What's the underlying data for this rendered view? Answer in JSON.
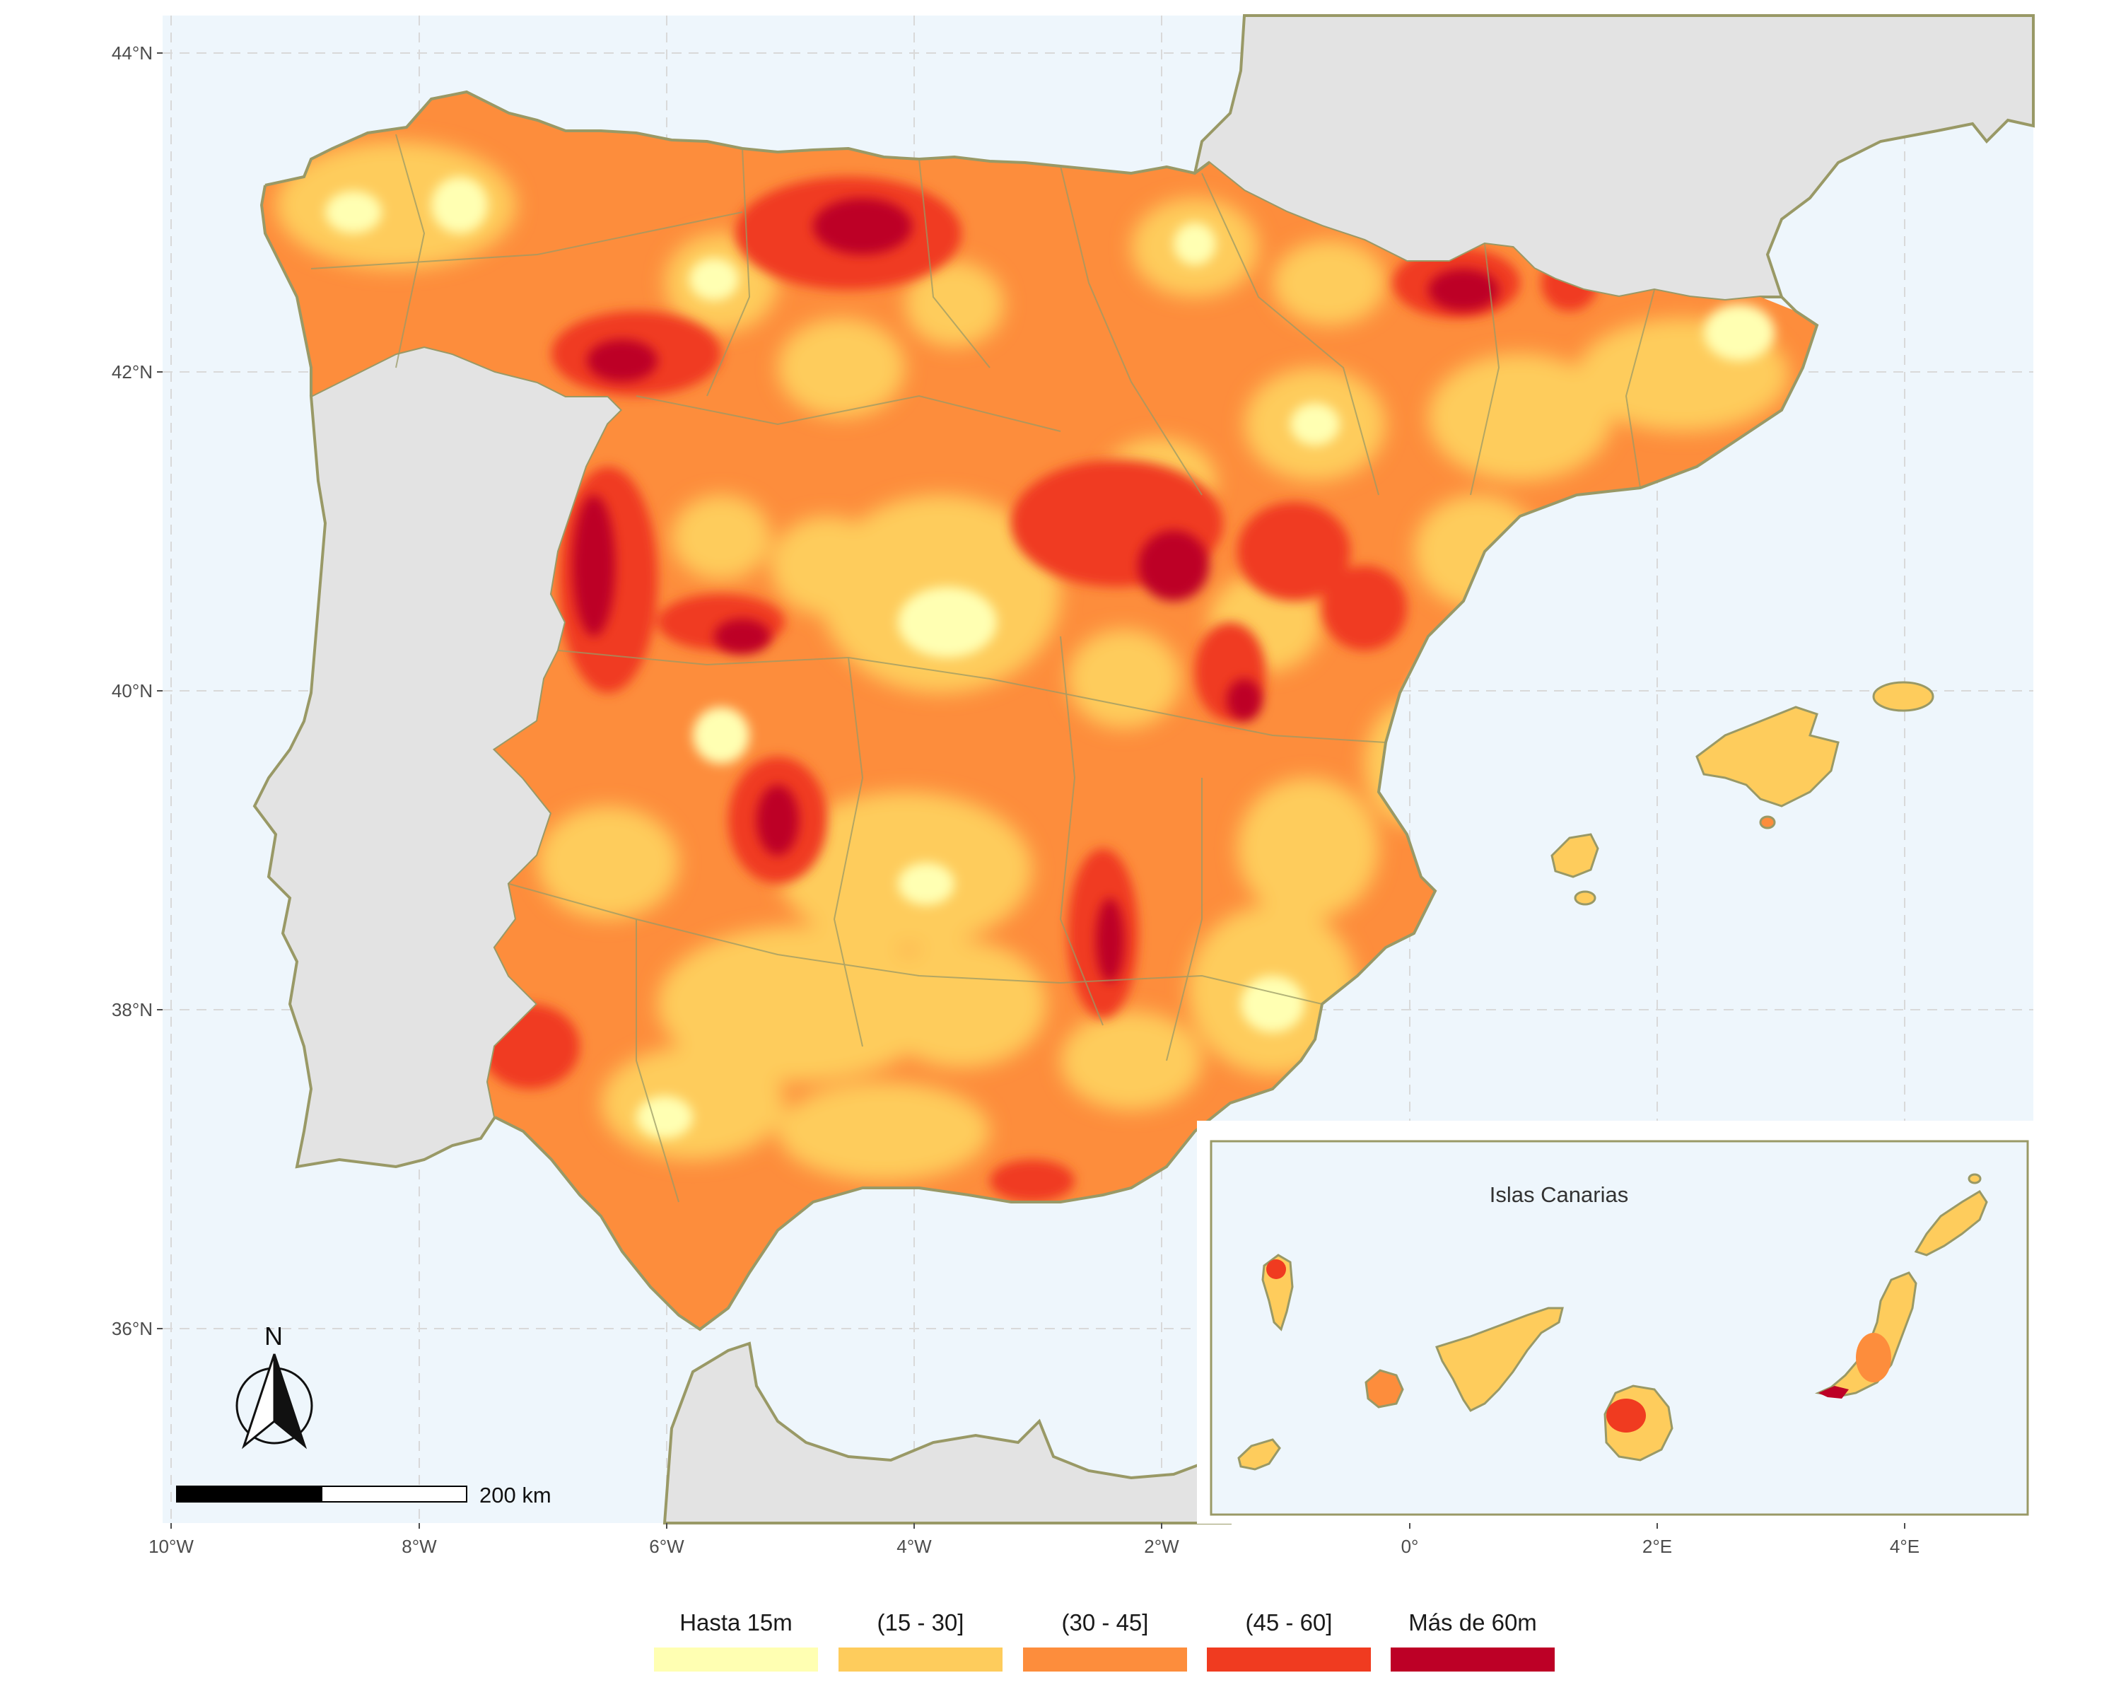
{
  "map": {
    "lat_ticks": [
      "44°N",
      "42°N",
      "40°N",
      "38°N",
      "36°N"
    ],
    "lon_ticks_main": [
      "10°W",
      "8°W",
      "6°W",
      "4°W",
      "2°W"
    ],
    "lon_ticks_inset": [
      "0°",
      "2°E",
      "4°E"
    ],
    "colors": {
      "ocean": "#eef6fc",
      "foreign_land": "#e3e3e3",
      "border": "#999966",
      "grid": "#dcdcdc"
    }
  },
  "inset": {
    "title": "Islas Canarias"
  },
  "scalebar": {
    "label": "200 km"
  },
  "north_arrow": {
    "label": "N"
  },
  "legend": {
    "items": [
      {
        "label": "Hasta 15m",
        "color": "#ffffb2"
      },
      {
        "label": "(15 - 30]",
        "color": "#fecc5c"
      },
      {
        "label": "(30 - 45]",
        "color": "#fd8d3c"
      },
      {
        "label": "(45 - 60]",
        "color": "#f03b20"
      },
      {
        "label": "Más de 60m",
        "color": "#bd0026"
      }
    ]
  }
}
